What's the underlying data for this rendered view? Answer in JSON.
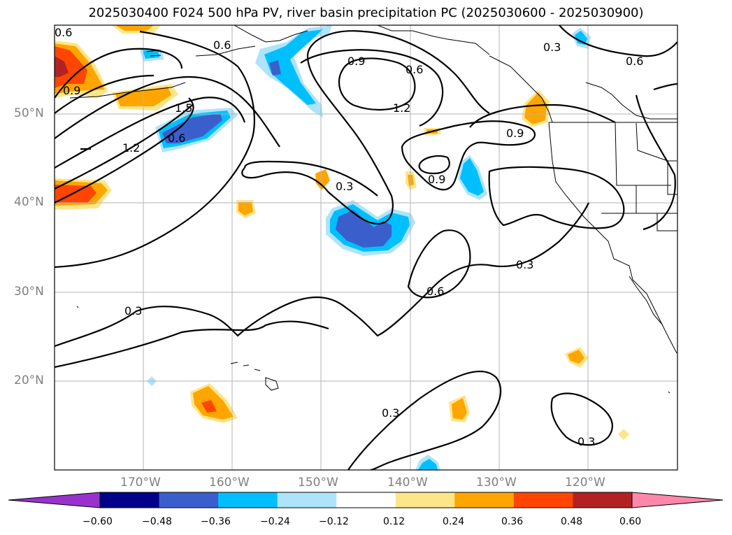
{
  "title": "2025030400 F024 500 hPa PV, river basin precipitation PC (2025030600 - 2025030900)",
  "lat_labels": [
    "50°N",
    "40°N",
    "30°N",
    "20°N"
  ],
  "lon_labels": [
    "170°W",
    "160°W",
    "150°W",
    "140°W",
    "130°W",
    "120°W"
  ],
  "contour_labels": {
    "c1": "0.6",
    "c2": "0.6",
    "c3": "0.9",
    "c4": "0.6",
    "c5": "0.3",
    "c6": "0.6",
    "c7": "0.9",
    "c8": "1.2",
    "c9": "1.5",
    "c10": "0.6",
    "c11": "1.2",
    "c12": "0.9",
    "c13": "0.9",
    "c14": "0.3",
    "c15": "0.3",
    "c16": "0.6",
    "c17": "0.3",
    "c18": "0.3",
    "c19": "0.3"
  },
  "colorbar": {
    "ticks": [
      "−0.60",
      "−0.48",
      "−0.36",
      "−0.24",
      "−0.12",
      "0.12",
      "0.24",
      "0.36",
      "0.48",
      "0.60"
    ],
    "colors": [
      "#9932cc",
      "#00008b",
      "#3a5fcd",
      "#00bfff",
      "#aee4fa",
      "#ffffff",
      "#fde68a",
      "#ffa500",
      "#ff4500",
      "#b22222",
      "#ff88aa"
    ]
  }
}
